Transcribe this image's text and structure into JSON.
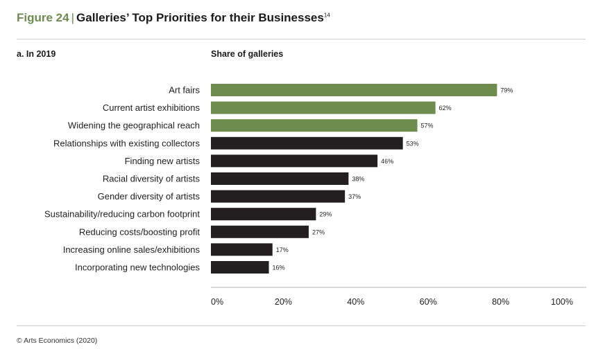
{
  "figure": {
    "number": "Figure 24",
    "separator": "|",
    "title": "Galleries’ Top Priorities for their Businesses",
    "footnote": "14"
  },
  "panel_label": "a. In 2019",
  "source": "© Arts Economics (2020)",
  "colors": {
    "highlight": "#6e8c4e",
    "default": "#231f20",
    "axis": "#b5b5b5"
  },
  "chart_data": {
    "type": "bar",
    "orientation": "horizontal",
    "title": "Share of galleries",
    "categories": [
      "Art fairs",
      "Current artist exhibitions",
      "Widening the geographical reach",
      "Relationships with existing collectors",
      "Finding new artists",
      "Racial diversity of artists",
      "Gender diversity of artists",
      "Sustainability/reducing carbon footprint",
      "Reducing costs/boosting profit",
      "Increasing online sales/exhibitions",
      "Incorporating new technologies"
    ],
    "values": [
      79,
      62,
      57,
      53,
      46,
      38,
      37,
      29,
      27,
      17,
      16
    ],
    "value_labels": [
      "79%",
      "62%",
      "57%",
      "53%",
      "46%",
      "38%",
      "37%",
      "29%",
      "27%",
      "17%",
      "16%"
    ],
    "highlighted_count": 3,
    "xlim": [
      0,
      100
    ],
    "xticks": [
      0,
      20,
      40,
      60,
      80,
      100
    ],
    "xtick_labels": [
      "0%",
      "20%",
      "40%",
      "60%",
      "80%",
      "100%"
    ]
  }
}
